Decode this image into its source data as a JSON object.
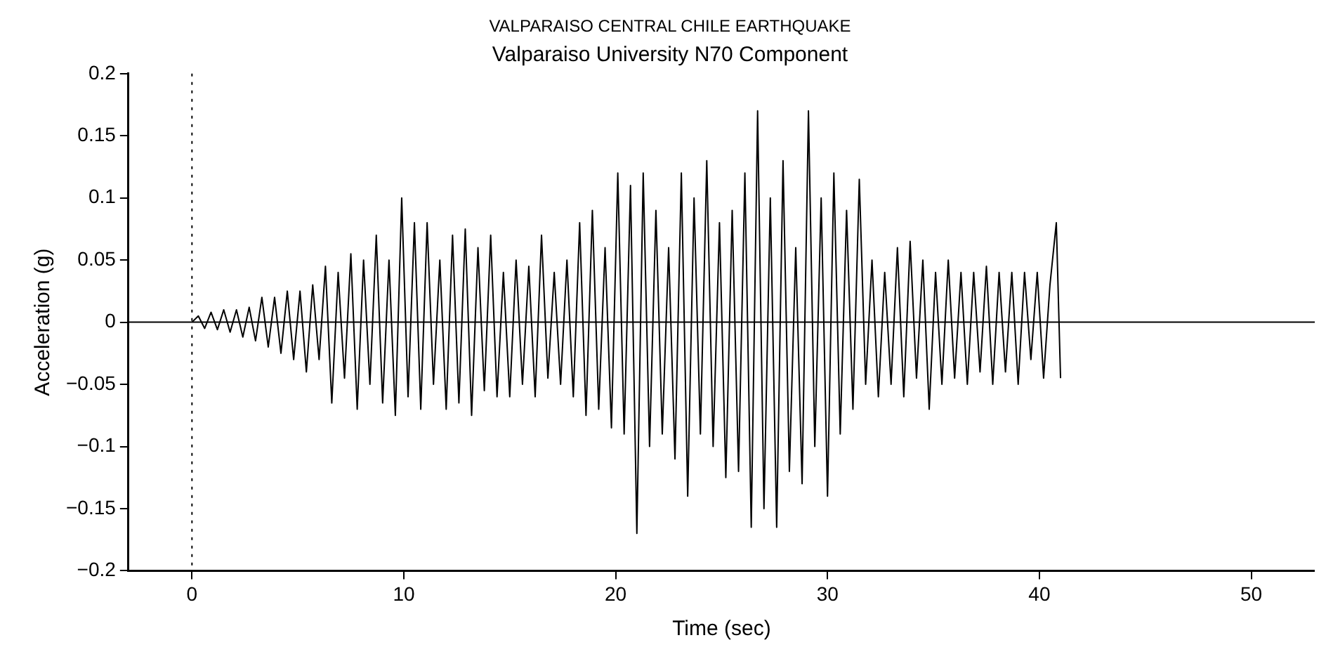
{
  "chart_data": {
    "type": "line",
    "title": "VALPARAISO CENTRAL CHILE EARTHQUAKE",
    "subtitle": "Valparaiso University N70 Component",
    "xlabel": "Time (sec)",
    "ylabel": "Acceleration (g)",
    "xlim": [
      -3,
      53
    ],
    "xticks": [
      0,
      10,
      20,
      30,
      40,
      50
    ],
    "ylim": [
      -0.2,
      0.2
    ],
    "yticks": [
      -0.2,
      -0.15,
      -0.1,
      -0.05,
      0,
      0.05,
      0.1,
      0.15,
      0.2
    ],
    "marker": "none",
    "line_style": "solid",
    "ref_lines": [
      {
        "axis": "y",
        "value": 0,
        "color": "#000000",
        "line_style": "solid"
      },
      {
        "axis": "x",
        "value": 0,
        "color": "#000000",
        "line_style": "dotted"
      }
    ],
    "series": [
      {
        "color": "#000000",
        "x": [
          0,
          0.3,
          0.6,
          0.9,
          1.2,
          1.5,
          1.8,
          2.1,
          2.4,
          2.7,
          3.0,
          3.3,
          3.6,
          3.9,
          4.2,
          4.5,
          4.8,
          5.1,
          5.4,
          5.7,
          6.0,
          6.3,
          6.6,
          6.9,
          7.2,
          7.5,
          7.8,
          8.1,
          8.4,
          8.7,
          9.0,
          9.3,
          9.6,
          9.9,
          10.2,
          10.5,
          10.8,
          11.1,
          11.4,
          11.7,
          12.0,
          12.3,
          12.6,
          12.9,
          13.2,
          13.5,
          13.8,
          14.1,
          14.4,
          14.7,
          15.0,
          15.3,
          15.6,
          15.9,
          16.2,
          16.5,
          16.8,
          17.1,
          17.4,
          17.7,
          18.0,
          18.3,
          18.6,
          18.9,
          19.2,
          19.5,
          19.8,
          20.1,
          20.4,
          20.7,
          21.0,
          21.3,
          21.6,
          21.9,
          22.2,
          22.5,
          22.8,
          23.1,
          23.4,
          23.7,
          24.0,
          24.3,
          24.6,
          24.9,
          25.2,
          25.5,
          25.8,
          26.1,
          26.4,
          26.7,
          27.0,
          27.3,
          27.6,
          27.9,
          28.2,
          28.5,
          28.8,
          29.1,
          29.4,
          29.7,
          30.0,
          30.3,
          30.6,
          30.9,
          31.2,
          31.5,
          31.8,
          32.1,
          32.4,
          32.7,
          33.0,
          33.3,
          33.6,
          33.9,
          34.2,
          34.5,
          34.8,
          35.1,
          35.4,
          35.7,
          36.0,
          36.3,
          36.6,
          36.9,
          37.2,
          37.5,
          37.8,
          38.1,
          38.4,
          38.7,
          39.0,
          39.3,
          39.6,
          39.9,
          40.2,
          40.5,
          40.8,
          41.0
        ],
        "values": [
          0,
          0.005,
          -0.005,
          0.008,
          -0.006,
          0.01,
          -0.008,
          0.01,
          -0.012,
          0.012,
          -0.015,
          0.02,
          -0.02,
          0.02,
          -0.025,
          0.025,
          -0.03,
          0.025,
          -0.04,
          0.03,
          -0.03,
          0.045,
          -0.065,
          0.04,
          -0.045,
          0.055,
          -0.07,
          0.05,
          -0.05,
          0.07,
          -0.065,
          0.05,
          -0.075,
          0.1,
          -0.06,
          0.08,
          -0.07,
          0.08,
          -0.05,
          0.05,
          -0.07,
          0.07,
          -0.065,
          0.075,
          -0.075,
          0.06,
          -0.055,
          0.07,
          -0.06,
          0.04,
          -0.06,
          0.05,
          -0.05,
          0.045,
          -0.06,
          0.07,
          -0.045,
          0.04,
          -0.05,
          0.05,
          -0.06,
          0.08,
          -0.075,
          0.09,
          -0.07,
          0.06,
          -0.085,
          0.12,
          -0.09,
          0.11,
          -0.17,
          0.12,
          -0.1,
          0.09,
          -0.09,
          0.06,
          -0.11,
          0.12,
          -0.14,
          0.1,
          -0.09,
          0.13,
          -0.1,
          0.08,
          -0.125,
          0.09,
          -0.12,
          0.12,
          -0.165,
          0.17,
          -0.15,
          0.1,
          -0.165,
          0.13,
          -0.12,
          0.06,
          -0.13,
          0.17,
          -0.1,
          0.1,
          -0.14,
          0.12,
          -0.09,
          0.09,
          -0.07,
          0.115,
          -0.05,
          0.05,
          -0.06,
          0.04,
          -0.05,
          0.06,
          -0.06,
          0.065,
          -0.045,
          0.05,
          -0.07,
          0.04,
          -0.05,
          0.05,
          -0.045,
          0.04,
          -0.05,
          0.04,
          -0.04,
          0.045,
          -0.05,
          0.04,
          -0.04,
          0.04,
          -0.05,
          0.04,
          -0.03,
          0.04,
          -0.045,
          0.03,
          0.08,
          -0.045
        ]
      }
    ]
  }
}
